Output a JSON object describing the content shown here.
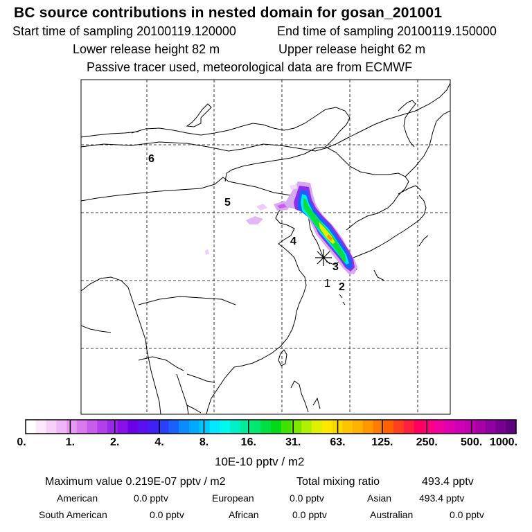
{
  "header": {
    "title": "BC  source contributions in nested domain for gosan_201001",
    "start_time": "Start time of sampling 20100119.120000",
    "end_time": "End time of sampling 20100119.150000",
    "lower_release": "Lower release height   82 m",
    "upper_release": "Upper release height   62 m",
    "note": "Passive tracer used, meteorological data are from ECMWF"
  },
  "map": {
    "region_labels": [
      "1",
      "2",
      "3",
      "4",
      "5",
      "6"
    ],
    "receptor_marker": "receptor-star"
  },
  "colorbar": {
    "tick_labels": [
      "0.",
      "1.",
      "2.",
      "4.",
      "8.",
      "16.",
      "31.",
      "63.",
      "125.",
      "250.",
      "500.",
      "1000."
    ],
    "units": "10E-10 pptv / m2",
    "colors": [
      "#ffffff",
      "#fbe8fb",
      "#f6d0f8",
      "#efb6f5",
      "#e698f2",
      "#d97bef",
      "#c85ded",
      "#b23fea",
      "#9a28ea",
      "#8a10ea",
      "#6a00e6",
      "#5a10f0",
      "#4020f4",
      "#2a40f8",
      "#1a60fa",
      "#0a8cfc",
      "#00a8ff",
      "#00c8ff",
      "#00e8ff",
      "#00f8f0",
      "#00f0c8",
      "#00ec9c",
      "#00e870",
      "#00e040",
      "#00d818",
      "#40e000",
      "#80e800",
      "#b0f000",
      "#e0f000",
      "#ffe800",
      "#ffd800",
      "#ffc400",
      "#ffb000",
      "#ff9800",
      "#ff7c00",
      "#ff6000",
      "#ff4020",
      "#ff2040",
      "#ff0060",
      "#ff0080",
      "#f000a0",
      "#e000b0",
      "#d000b8",
      "#c000b0",
      "#a800a8",
      "#9000a0",
      "#780090",
      "#600080"
    ]
  },
  "summary": {
    "maximum_value": "Maximum value  0.219E-07 pptv / m2",
    "total_mixing_ratio": "Total mixing ratio",
    "total_mixing_value": "493.4 pptv",
    "american_label": "American",
    "american_value": "0.0 pptv",
    "european_label": "European",
    "european_value": "0.0 pptv",
    "asian_label": "Asian",
    "asian_value": "493.4 pptv",
    "south_american_label": "South American",
    "south_american_value": "0.0 pptv",
    "african_label": "African",
    "african_value": "0.0 pptv",
    "australian_label": "Australian",
    "australian_value": "0.0 pptv"
  }
}
